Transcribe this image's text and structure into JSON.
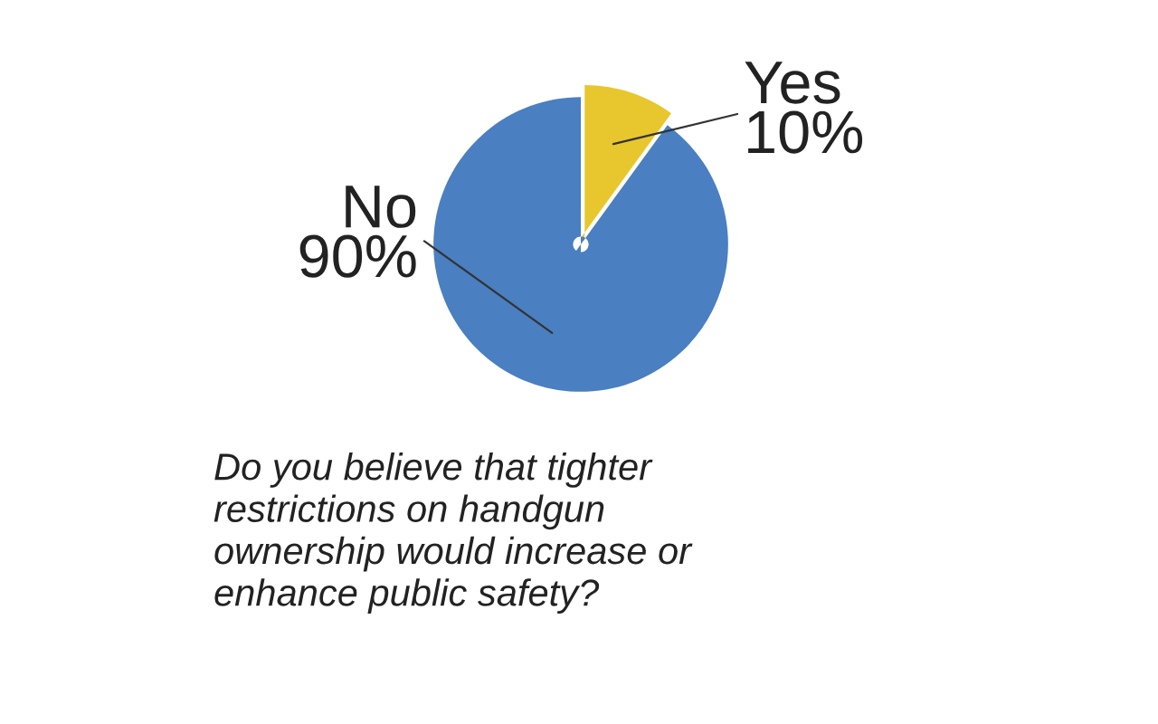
{
  "chart_data": {
    "type": "pie",
    "categories": [
      "Yes",
      "No"
    ],
    "values": [
      10,
      90
    ],
    "colors": [
      "#e8c72e",
      "#4a7fc1"
    ],
    "value_labels": [
      "10%",
      "90%"
    ],
    "title": "Do you believe that tighter\nrestrictions on handgun\nownership would increase or\nenhance public safety?",
    "legend": false
  }
}
